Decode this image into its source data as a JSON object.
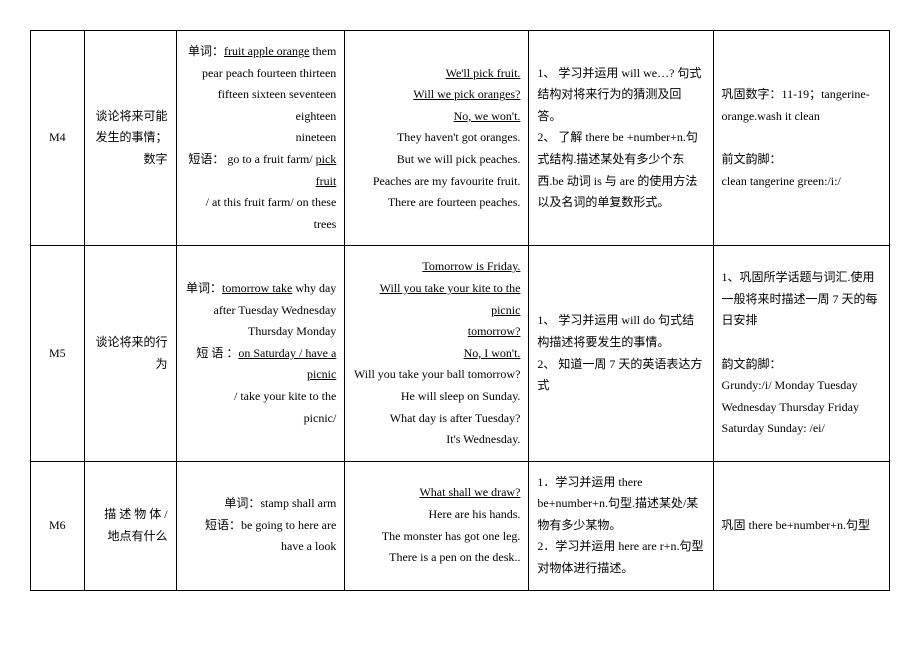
{
  "rows": [
    {
      "id": "M4",
      "topic": "谈论将来可能发生的事情；数字",
      "vocab_label": "单词：",
      "vocab_underlined": "fruit  apple  orange",
      "vocab_rest_lines": [
        " them",
        "pear    peach  fourteen  thirteen",
        "fifteen sixteen seventeen eighteen",
        "nineteen"
      ],
      "phrase_label": "短语：",
      "phrase_pre": " go to a fruit farm/ ",
      "phrase_underlined": "pick fruit",
      "phrase_post_lines": [
        "/ at this fruit farm/ on these",
        "trees"
      ],
      "sentences": [
        {
          "t": "We'll pick fruit.",
          "u": true
        },
        {
          "t": "Will we pick oranges?",
          "u": true
        },
        {
          "t": "No, we won't.",
          "u": true
        },
        {
          "t": "They haven't got oranges.",
          "u": false
        },
        {
          "t": "But we will pick peaches.",
          "u": false
        },
        {
          "t": "Peaches are my favourite fruit.",
          "u": false
        },
        {
          "t": "There are fourteen peaches.",
          "u": false
        }
      ],
      "objectives": [
        "1、 学习并运用 will we…?  句式结构对将来行为的猜测及回答。",
        "2、 了解 there be +number+n.句式结构.描述某处有多少个东西.be 动词 is 与 are 的使用方法以及名词的单复数形式。"
      ],
      "notes": [
        "巩固数字：11-19；tangerine-orange.wash it clean",
        "",
        "前文韵脚：",
        "clean tangerine green:/i:/"
      ]
    },
    {
      "id": "M5",
      "topic": "谈论将来的行为",
      "vocab_label": "单词：",
      "vocab_underlined": "tomorrow  take",
      "vocab_rest_lines": [
        " why day",
        "after    Tuesday    Wednesday",
        "Thursday Monday"
      ],
      "phrase_label": "短 语 ：",
      "phrase_pre": "",
      "phrase_underlined": "on  Saturday  /  have  a picnic",
      "phrase_post_lines": [
        "/  take  your  kite  to  the",
        "picnic/"
      ],
      "sentences": [
        {
          "t": "Tomorrow is Friday.",
          "u": true
        },
        {
          "t": "Will you take your kite to the picnic",
          "u": true
        },
        {
          "t": "tomorrow?",
          "u": true
        },
        {
          "t": "No, I won't.",
          "u": true
        },
        {
          "t": "Will you take your ball tomorrow?",
          "u": false
        },
        {
          "t": "He will sleep on Sunday.",
          "u": false
        },
        {
          "t": "What day is after Tuesday?",
          "u": false
        },
        {
          "t": "It's Wednesday.",
          "u": false
        }
      ],
      "objectives": [
        "1、 学习并运用 will do 句式结构描述将要发生的事情。",
        "2、 知道一周 7 天的英语表达方式"
      ],
      "notes": [
        "1、巩固所学话题与词汇.使用一般将来时描述一周 7 天的每日安排",
        "",
        "韵文韵脚：",
        "Grundy:/i/        Monday        Tuesday",
        "Wednesday        Thursday        Friday",
        "Saturday    Sunday: /ei/"
      ]
    },
    {
      "id": "M6",
      "topic": "描 述 物 体 /地点有什么",
      "vocab_label": "单词：",
      "vocab_underlined": "",
      "vocab_rest_lines": [
        "stamp  shall arm"
      ],
      "phrase_label": "短语：",
      "phrase_pre": "be going to  here are   have a look",
      "phrase_underlined": "",
      "phrase_post_lines": [],
      "sentences": [
        {
          "t": "What shall we draw?",
          "u": true
        },
        {
          "t": "Here are his hands.",
          "u": false
        },
        {
          "t": "The monster has got one leg.",
          "u": false
        },
        {
          "t": "There is a pen on the desk..",
          "u": false
        }
      ],
      "objectives": [
        "1．学习并运用 there be+number+n.句型.描述某处/某物有多少某物。",
        "2．学习并运用 here are r+n.句型对物体进行描述。"
      ],
      "notes": [
        "巩固 there be+number+n.句型"
      ]
    }
  ]
}
